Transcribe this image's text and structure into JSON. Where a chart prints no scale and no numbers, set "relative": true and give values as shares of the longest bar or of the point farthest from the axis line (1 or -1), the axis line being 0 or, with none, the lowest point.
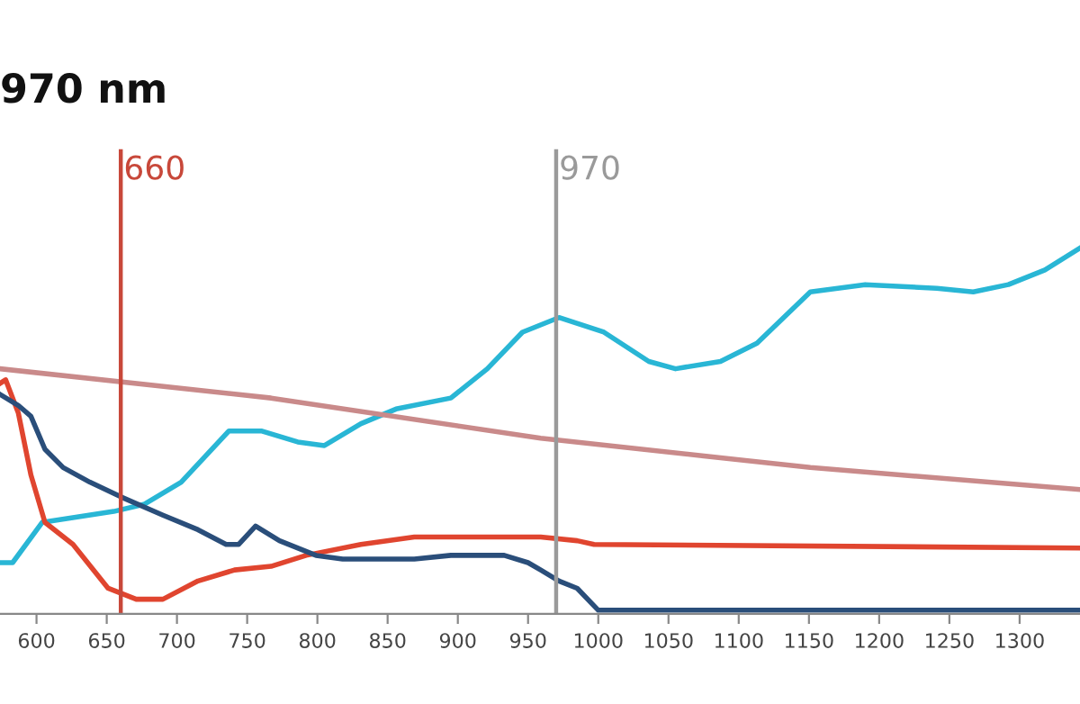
{
  "chart_data": {
    "type": "line",
    "title": "970 nm",
    "relative": true,
    "xlim": [
      574,
      1343
    ],
    "xticks": [
      600,
      650,
      700,
      750,
      800,
      850,
      900,
      950,
      1000,
      1050,
      1100,
      1150,
      1200,
      1250,
      1300
    ],
    "grid": false,
    "legend": false,
    "marker": "none",
    "line_style": "solid",
    "series": [
      {
        "color": "#29b6d5",
        "x": [
          574,
          583,
          604,
          655,
          677,
          703,
          737,
          760,
          786,
          805,
          831,
          856,
          895,
          921,
          946,
          972,
          1004,
          1036,
          1055,
          1087,
          1113,
          1151,
          1190,
          1241,
          1267,
          1292,
          1318,
          1343
        ],
        "values": [
          0.14,
          0.14,
          0.25,
          0.28,
          0.3,
          0.36,
          0.5,
          0.5,
          0.47,
          0.46,
          0.52,
          0.56,
          0.59,
          0.67,
          0.77,
          0.81,
          0.77,
          0.69,
          0.67,
          0.69,
          0.74,
          0.88,
          0.9,
          0.89,
          0.88,
          0.9,
          0.94,
          1.0
        ]
      },
      {
        "color": "#c98a8a",
        "x": [
          574,
          767,
          959,
          1151,
          1343
        ],
        "values": [
          0.67,
          0.59,
          0.48,
          0.4,
          0.34
        ]
      },
      {
        "color": "#e0452f",
        "x": [
          574,
          578,
          587,
          596,
          606,
          626,
          651,
          671,
          690,
          715,
          741,
          767,
          792,
          831,
          869,
          921,
          959,
          985,
          997,
          1343
        ],
        "values": [
          0.63,
          0.64,
          0.55,
          0.38,
          0.25,
          0.19,
          0.07,
          0.04,
          0.04,
          0.09,
          0.12,
          0.13,
          0.16,
          0.19,
          0.21,
          0.21,
          0.21,
          0.2,
          0.19,
          0.18
        ]
      },
      {
        "color": "#2a4e7a",
        "x": [
          574,
          587,
          596,
          606,
          619,
          638,
          660,
          690,
          715,
          735,
          744,
          756,
          773,
          799,
          818,
          869,
          895,
          933,
          950,
          959,
          972,
          985,
          1000,
          1343
        ],
        "values": [
          0.6,
          0.57,
          0.54,
          0.45,
          0.4,
          0.36,
          0.32,
          0.27,
          0.23,
          0.19,
          0.19,
          0.24,
          0.2,
          0.16,
          0.15,
          0.15,
          0.16,
          0.16,
          0.14,
          0.12,
          0.09,
          0.07,
          0.01,
          0.01
        ]
      }
    ],
    "ref_lines": [
      {
        "axis": "x",
        "value": 660,
        "label": "660",
        "color": "#c8483a"
      },
      {
        "axis": "x",
        "value": 970,
        "label": "970",
        "color": "#9a9a9a"
      }
    ]
  }
}
